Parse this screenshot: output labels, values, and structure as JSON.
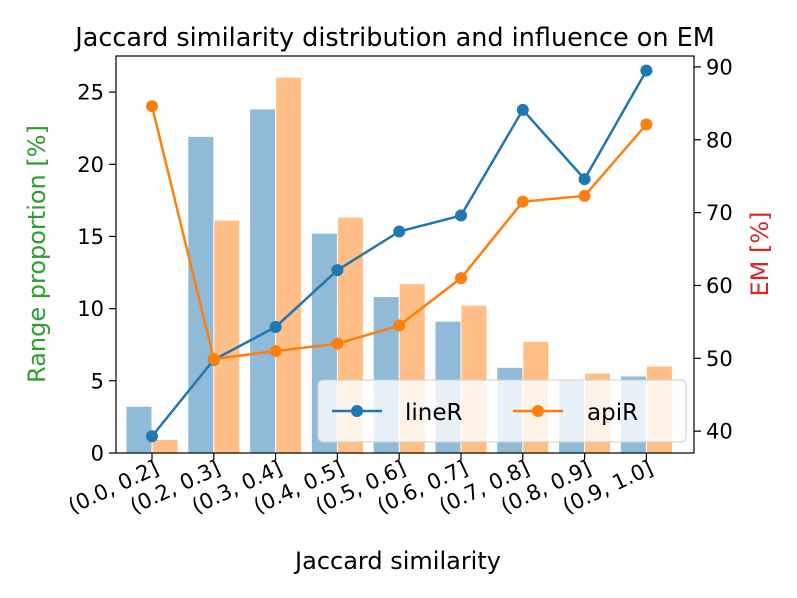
{
  "chart_data": {
    "type": "bar+line",
    "title": "Jaccard similarity distribution and influence on EM",
    "xlabel": "Jaccard similarity",
    "ylabel_left": "Range proportion [%]",
    "ylabel_right": "EM [%]",
    "categories": [
      "(0.0, 0.2]",
      "(0.2, 0.3]",
      "(0.3, 0.4]",
      "(0.4, 0.5]",
      "(0.5, 0.6]",
      "(0.6, 0.7]",
      "(0.7, 0.8]",
      "(0.8, 0.9]",
      "(0.9, 1.0]"
    ],
    "ylim_left": [
      0,
      27.5
    ],
    "yticks_left": [
      0,
      5,
      10,
      15,
      20,
      25
    ],
    "ylim_right": [
      37,
      91.5
    ],
    "yticks_right": [
      40,
      50,
      60,
      70,
      80,
      90
    ],
    "bars": [
      {
        "series": "lineR",
        "color": "#1f77b4",
        "values": [
          3.2,
          21.9,
          23.8,
          15.2,
          10.8,
          9.1,
          5.9,
          5.0,
          5.3
        ]
      },
      {
        "series": "apiR",
        "color": "#ff7f0e",
        "values": [
          0.9,
          16.1,
          26.0,
          16.3,
          11.7,
          10.2,
          7.7,
          5.5,
          6.0
        ]
      }
    ],
    "lines": [
      {
        "name": "lineR",
        "color": "#1f77b4",
        "values": [
          39.3,
          49.8,
          54.3,
          62.1,
          67.4,
          69.6,
          84.1,
          74.6,
          89.5
        ]
      },
      {
        "name": "apiR",
        "color": "#ff7f0e",
        "values": [
          84.6,
          49.9,
          51.0,
          52.0,
          54.5,
          61.0,
          71.5,
          72.3,
          82.1
        ]
      }
    ],
    "label_colors": {
      "left_axis": "#2ca02c",
      "right_axis": "#d62728"
    },
    "legend": {
      "placement": "lower-right",
      "columns": 2
    },
    "grid": false
  }
}
